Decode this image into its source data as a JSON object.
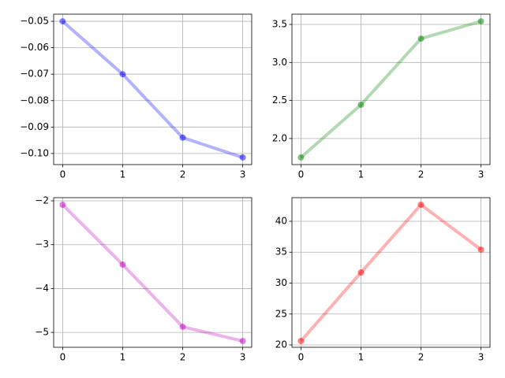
{
  "chart_data": [
    {
      "type": "line",
      "x": [
        0,
        1,
        2,
        3
      ],
      "values": [
        -0.05,
        -0.07,
        -0.094,
        -0.1015
      ],
      "color": "#0000ff",
      "xlim": [
        -0.15,
        3.15
      ],
      "xticks": [
        0,
        1,
        2,
        3
      ],
      "ylim": [
        -0.1042,
        -0.0473
      ],
      "yticks": [
        {
          "value": -0.1,
          "label": "−0.10"
        },
        {
          "value": -0.09,
          "label": "−0.09"
        },
        {
          "value": -0.08,
          "label": "−0.08"
        },
        {
          "value": -0.07,
          "label": "−0.07"
        },
        {
          "value": -0.06,
          "label": "−0.06"
        },
        {
          "value": -0.05,
          "label": "−0.05"
        }
      ],
      "grid": true
    },
    {
      "type": "line",
      "x": [
        0,
        1,
        2,
        3
      ],
      "values": [
        1.751,
        2.444,
        3.314,
        3.541
      ],
      "color": "#008000",
      "xlim": [
        -0.15,
        3.15
      ],
      "xticks": [
        0,
        1,
        2,
        3
      ],
      "ylim": [
        1.657,
        3.635
      ],
      "yticks": [
        {
          "value": 2,
          "label": "2.0"
        },
        2.5,
        {
          "value": 3,
          "label": "3.0"
        },
        3.5
      ],
      "grid": true
    },
    {
      "type": "line",
      "x": [
        0,
        1,
        2,
        3
      ],
      "values": [
        -2.09,
        -3.454,
        -4.873,
        -5.196
      ],
      "color": "#bf00bf",
      "xlim": [
        -0.15,
        3.15
      ],
      "xticks": [
        0,
        1,
        2,
        3
      ],
      "ylim": [
        -5.339,
        -1.928
      ],
      "yticks": [
        {
          "value": -5,
          "label": "−5"
        },
        {
          "value": -4,
          "label": "−4"
        },
        {
          "value": -3,
          "label": "−3"
        },
        {
          "value": -2,
          "label": "−2"
        }
      ],
      "grid": true
    },
    {
      "type": "line",
      "x": [
        0,
        1,
        2,
        3
      ],
      "values": [
        20.64,
        31.72,
        42.68,
        35.41
      ],
      "color": "#ff0000",
      "xlim": [
        -0.15,
        3.15
      ],
      "xticks": [
        0,
        1,
        2,
        3
      ],
      "ylim": [
        19.62,
        43.82
      ],
      "yticks": [
        20,
        25,
        30,
        35,
        40
      ],
      "grid": true
    }
  ]
}
